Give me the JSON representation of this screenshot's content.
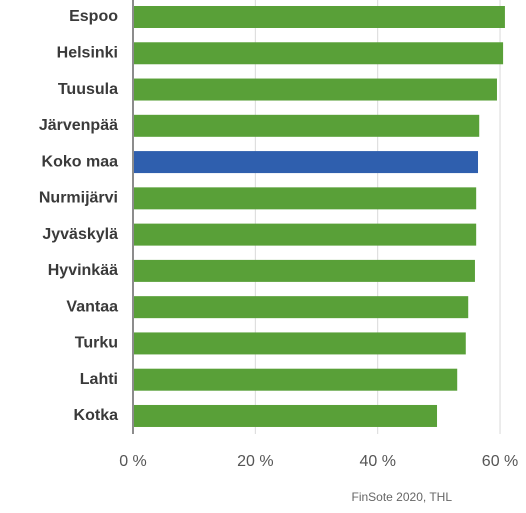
{
  "chart_data": {
    "type": "barh",
    "categories": [
      "Espoo",
      "Helsinki",
      "Tuusula",
      "Järvenpää",
      "Koko maa",
      "Nurmijärvi",
      "Jyväskylä",
      "Hyvinkää",
      "Vantaa",
      "Turku",
      "Lahti",
      "Kotka"
    ],
    "values": [
      60.8,
      60.5,
      59.5,
      56.6,
      56.4,
      56.1,
      56.1,
      55.9,
      54.8,
      54.4,
      53.0,
      49.7
    ],
    "colors": [
      "#59a038",
      "#59a038",
      "#59a038",
      "#59a038",
      "#2f5fae",
      "#59a038",
      "#59a038",
      "#59a038",
      "#59a038",
      "#59a038",
      "#59a038",
      "#59a038"
    ],
    "xlim": [
      0,
      64
    ],
    "xticks": [
      {
        "value": 0,
        "label": "0 %"
      },
      {
        "value": 20,
        "label": "20 %"
      },
      {
        "value": 40,
        "label": "40 %"
      },
      {
        "value": 60,
        "label": "60 %"
      }
    ],
    "grid": true,
    "source": "FinSote 2020, THL"
  }
}
